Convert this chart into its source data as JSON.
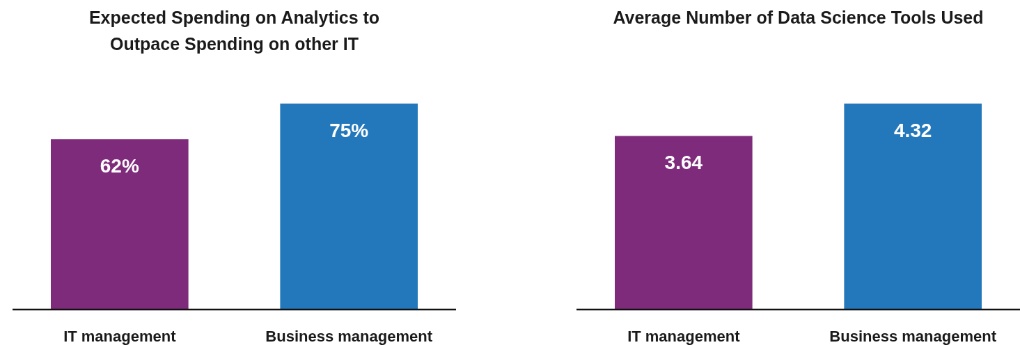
{
  "chart_data": [
    {
      "type": "bar",
      "title": "Expected Spending on Analytics to\nOutpace Spending on other IT",
      "categories": [
        "IT management",
        "Business management"
      ],
      "values": [
        62,
        75
      ],
      "colors": [
        "#7f2b7b",
        "#2378bc"
      ],
      "value_labels": [
        "62%",
        "75%"
      ]
    },
    {
      "type": "bar",
      "title": "Average Number of Data Science Tools Used",
      "categories": [
        "IT management",
        "Business management"
      ],
      "values": [
        3.64,
        4.32
      ],
      "colors": [
        "#7f2b7b",
        "#2378bc"
      ],
      "data_labels": true
    }
  ]
}
